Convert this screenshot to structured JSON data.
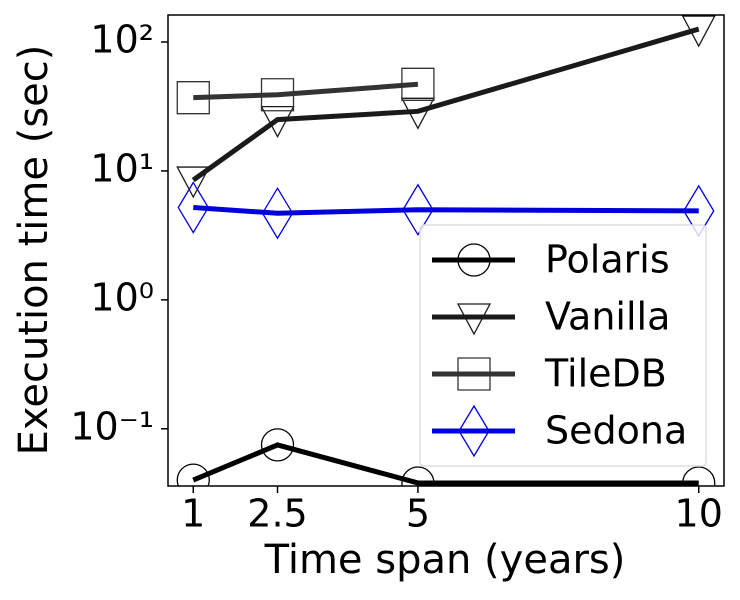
{
  "chart_data": {
    "type": "line",
    "xlabel": "Time span (years)",
    "ylabel": "Execution time (sec)",
    "x": [
      1,
      2.5,
      5,
      10
    ],
    "series": [
      {
        "name": "Polaris",
        "color": "#000000",
        "marker": "circle",
        "values": [
          0.04,
          0.075,
          0.038,
          0.038
        ]
      },
      {
        "name": "Vanilla",
        "color": "#1a1a1a",
        "marker": "triangle-down",
        "values": [
          8.5,
          25,
          29,
          126
        ]
      },
      {
        "name": "TileDB",
        "color": "#333333",
        "marker": "square",
        "values": [
          37,
          39,
          47,
          null
        ]
      },
      {
        "name": "Sedona",
        "color": "#0000dd",
        "marker": "diamond",
        "values": [
          5.2,
          4.7,
          5.0,
          4.9
        ]
      }
    ],
    "xlim": [
      0.55,
      10.45
    ],
    "xticks": [
      1,
      2.5,
      5,
      10
    ],
    "ylim": [
      0.036,
      162
    ],
    "ylog": true,
    "yticks": [
      {
        "value": 0.1,
        "label": "10⁻¹"
      },
      {
        "value": 1,
        "label": "10⁰"
      },
      {
        "value": 10,
        "label": "10¹"
      },
      {
        "value": 100,
        "label": "10²"
      }
    ],
    "legend": "lower right"
  }
}
